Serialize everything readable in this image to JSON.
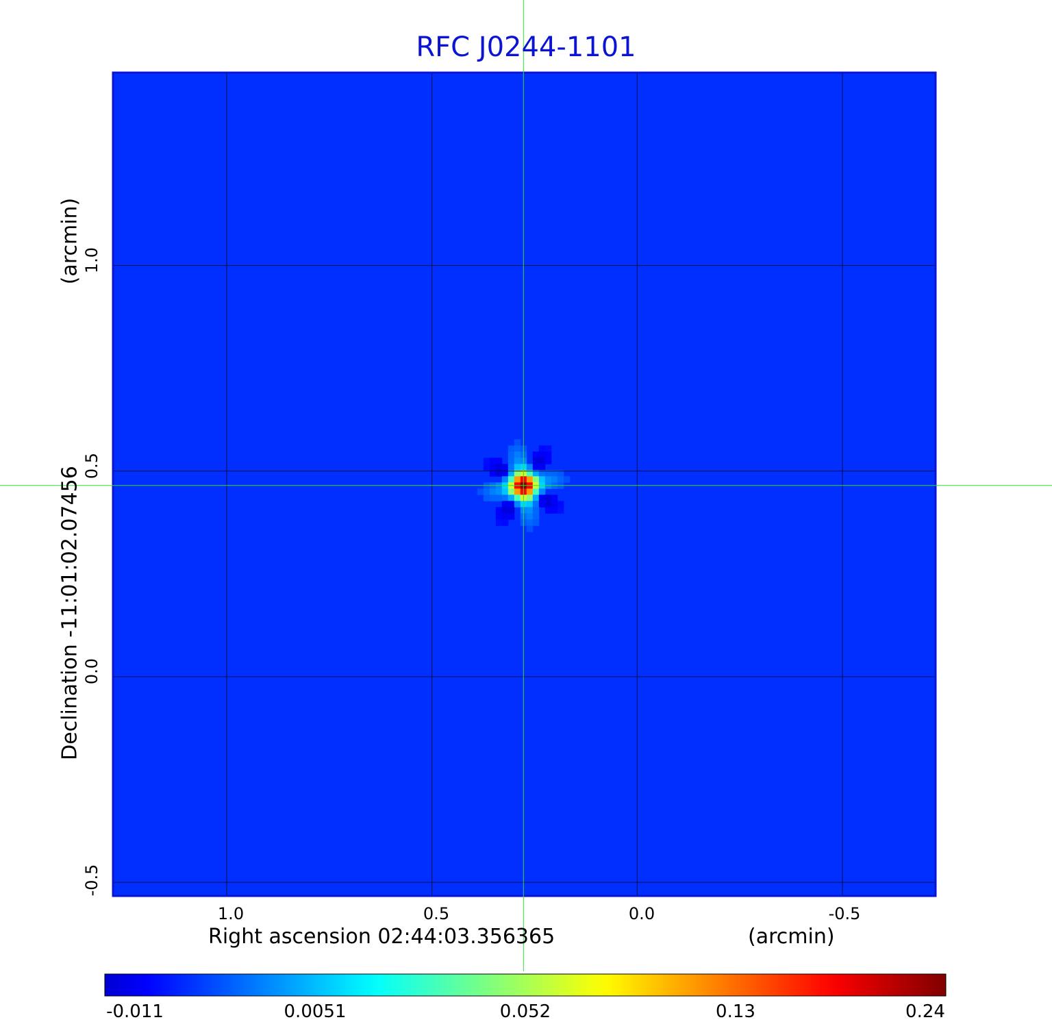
{
  "chart_data": {
    "type": "heatmap",
    "title": "RFC J0244-1101",
    "xlabel": "Right ascension  02:44:03.356365",
    "x_unit": "(arcmin)",
    "ylabel": "Declination  -11:01:02.07456",
    "y_unit": "(arcmin)",
    "x_ticks": [
      "1.0",
      "0.5",
      "0.0",
      "-0.5"
    ],
    "y_ticks": [
      "1.0",
      "0.5",
      "0.0",
      "-0.5"
    ],
    "x_tick_values": [
      1.0,
      0.5,
      0.0,
      -0.5
    ],
    "y_tick_values": [
      1.0,
      0.5,
      0.0,
      -0.5
    ],
    "xlim": [
      1.277,
      -0.727
    ],
    "ylim": [
      -0.533,
      1.469
    ],
    "grid": true,
    "crosshair": {
      "x": 0.277,
      "y": 0.465,
      "color": "#33dd33"
    },
    "peak": {
      "x": 0.277,
      "y": 0.465,
      "value": 0.24
    },
    "background_value": 0.0,
    "colormap": "jet",
    "colorbar_ticks": [
      "-0.011",
      "0.0051",
      "0.052",
      "0.13",
      "0.24"
    ],
    "colorbar_range": [
      -0.011,
      0.24
    ],
    "colors": {
      "title": "#0a14d2",
      "frame": "#0a14d2",
      "grid": "#0a1040",
      "background": "#1a76f6"
    }
  }
}
